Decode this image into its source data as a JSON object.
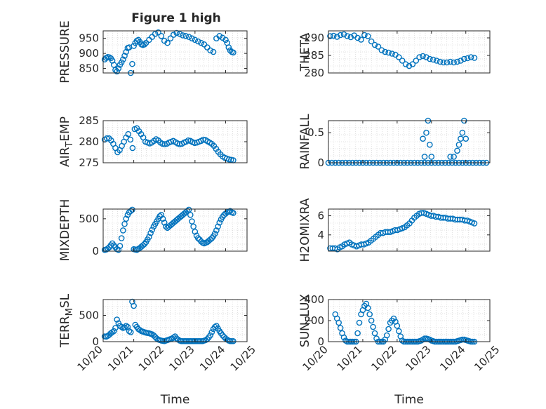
{
  "title": "Figure 1 high",
  "colors": {
    "marker": "#0072BD",
    "axis": "#262626",
    "grid": "#d9d9d9"
  },
  "chart_data": [
    {
      "type": "scatter",
      "ylabel": "PRESSURE",
      "ylim": [
        835,
        975
      ],
      "yticks": [
        850,
        900,
        950
      ],
      "xlim": [
        0,
        4.7
      ],
      "grid": true,
      "x": [
        0.05,
        0.1,
        0.15,
        0.2,
        0.25,
        0.3,
        0.35,
        0.4,
        0.45,
        0.5,
        0.55,
        0.6,
        0.65,
        0.7,
        0.75,
        0.8,
        0.85,
        0.9,
        0.95,
        1.0,
        1.05,
        1.1,
        1.15,
        1.2,
        1.25,
        1.3,
        1.35,
        1.4,
        1.5,
        1.6,
        1.7,
        1.8,
        1.9,
        2.0,
        2.1,
        2.2,
        2.3,
        2.4,
        2.5,
        2.6,
        2.7,
        2.8,
        2.9,
        3.0,
        3.1,
        3.2,
        3.3,
        3.4,
        3.5,
        3.6,
        3.7,
        3.8,
        3.9,
        4.0,
        4.05,
        4.1,
        4.15,
        4.2,
        4.25
      ],
      "values": [
        880,
        885,
        888,
        887,
        884,
        876,
        862,
        845,
        840,
        850,
        862,
        870,
        880,
        892,
        905,
        918,
        920,
        835,
        865,
        925,
        935,
        942,
        945,
        938,
        930,
        928,
        930,
        935,
        945,
        955,
        965,
        970,
        958,
        942,
        935,
        950,
        962,
        968,
        965,
        960,
        958,
        955,
        950,
        945,
        940,
        935,
        930,
        920,
        910,
        905,
        950,
        958,
        952,
        945,
        935,
        920,
        910,
        905,
        903
      ]
    },
    {
      "type": "scatter",
      "ylabel": "THETA",
      "ylim": [
        280,
        292
      ],
      "yticks": [
        280,
        285,
        290
      ],
      "xlim": [
        0,
        4.7
      ],
      "grid": true,
      "x": [
        0.05,
        0.15,
        0.25,
        0.35,
        0.45,
        0.55,
        0.65,
        0.75,
        0.85,
        0.95,
        1.05,
        1.15,
        1.25,
        1.35,
        1.45,
        1.55,
        1.65,
        1.75,
        1.85,
        1.95,
        2.05,
        2.15,
        2.25,
        2.35,
        2.45,
        2.55,
        2.65,
        2.75,
        2.85,
        2.95,
        3.05,
        3.15,
        3.25,
        3.35,
        3.45,
        3.55,
        3.65,
        3.75,
        3.85,
        3.95,
        4.05,
        4.15,
        4.25
      ],
      "values": [
        290.5,
        290.6,
        290.3,
        290.8,
        291.0,
        290.5,
        290.2,
        290.7,
        290.0,
        289.5,
        290.8,
        290.5,
        289.0,
        288.0,
        287.5,
        286.5,
        286.0,
        285.8,
        285.5,
        285.2,
        284.5,
        283.5,
        282.5,
        282.0,
        282.5,
        283.5,
        284.5,
        284.8,
        284.5,
        284.0,
        283.8,
        283.5,
        283.2,
        283.0,
        283.0,
        283.2,
        283.0,
        283.2,
        283.5,
        284.0,
        284.2,
        284.5,
        284.3
      ]
    },
    {
      "type": "scatter",
      "ylabel": "AIR_TEMP",
      "ylim": [
        275,
        285
      ],
      "yticks": [
        275,
        280,
        285
      ],
      "xlim": [
        0,
        4.7
      ],
      "grid": true,
      "x": [
        0.05,
        0.12,
        0.19,
        0.26,
        0.33,
        0.4,
        0.47,
        0.54,
        0.61,
        0.68,
        0.75,
        0.82,
        0.89,
        0.96,
        1.03,
        1.1,
        1.17,
        1.24,
        1.31,
        1.38,
        1.45,
        1.52,
        1.59,
        1.66,
        1.73,
        1.8,
        1.87,
        1.94,
        2.01,
        2.08,
        2.15,
        2.22,
        2.29,
        2.36,
        2.43,
        2.5,
        2.57,
        2.64,
        2.71,
        2.78,
        2.85,
        2.92,
        2.99,
        3.06,
        3.13,
        3.2,
        3.27,
        3.34,
        3.41,
        3.48,
        3.55,
        3.62,
        3.69,
        3.76,
        3.83,
        3.9,
        3.97,
        4.04,
        4.11,
        4.18,
        4.25
      ],
      "values": [
        280.5,
        280.8,
        280.8,
        280.3,
        279.5,
        278.5,
        277.5,
        278.0,
        279.0,
        280.0,
        281.0,
        281.8,
        280.5,
        278.5,
        283.0,
        283.2,
        282.5,
        281.8,
        281.0,
        280.0,
        279.8,
        279.6,
        279.8,
        280.2,
        280.6,
        280.3,
        279.8,
        279.5,
        279.4,
        279.5,
        279.8,
        280.0,
        280.2,
        279.9,
        279.6,
        279.4,
        279.5,
        279.8,
        280.0,
        280.3,
        280.2,
        279.9,
        279.7,
        279.8,
        280.0,
        280.2,
        280.5,
        280.4,
        280.1,
        279.8,
        279.5,
        279.0,
        278.3,
        277.6,
        277.0,
        276.5,
        276.2,
        276.0,
        275.8,
        275.7,
        275.6
      ]
    },
    {
      "type": "scatter",
      "ylabel": "RAINFALL",
      "ylim": [
        0,
        0.7
      ],
      "yticks": [
        0,
        0.5
      ],
      "xlim": [
        0,
        4.7
      ],
      "grid": true,
      "x": [
        0.0,
        0.1,
        0.2,
        0.3,
        0.4,
        0.5,
        0.6,
        0.7,
        0.8,
        0.9,
        1.0,
        1.1,
        1.2,
        1.3,
        1.4,
        1.5,
        1.6,
        1.7,
        1.8,
        1.9,
        2.0,
        2.1,
        2.2,
        2.3,
        2.4,
        2.5,
        2.6,
        2.7,
        2.8,
        2.9,
        3.0,
        3.1,
        3.2,
        3.3,
        3.4,
        3.5,
        3.6,
        3.7,
        3.8,
        3.9,
        4.0,
        4.1,
        4.2,
        4.3,
        4.4,
        4.5,
        4.6,
        2.75,
        2.8,
        2.85,
        2.9,
        2.95,
        3.0,
        3.55,
        3.65,
        3.75,
        3.8,
        3.85,
        3.9,
        3.95,
        4.0
      ],
      "values": [
        0,
        0,
        0,
        0,
        0,
        0,
        0,
        0,
        0,
        0,
        0,
        0,
        0,
        0,
        0,
        0,
        0,
        0,
        0,
        0,
        0,
        0,
        0,
        0,
        0,
        0,
        0,
        0,
        0,
        0,
        0,
        0,
        0,
        0,
        0,
        0,
        0,
        0,
        0,
        0,
        0,
        0,
        0,
        0,
        0,
        0,
        0,
        0.4,
        0.1,
        0.5,
        0.7,
        0.3,
        0.1,
        0.1,
        0.1,
        0.2,
        0.3,
        0.4,
        0.5,
        0.7,
        0.4
      ]
    },
    {
      "type": "scatter",
      "ylabel": "MIXDEPTH",
      "ylim": [
        0,
        650
      ],
      "yticks": [
        0,
        500
      ],
      "xlim": [
        0,
        4.7
      ],
      "grid": true,
      "x": [
        0.05,
        0.1,
        0.15,
        0.2,
        0.25,
        0.3,
        0.35,
        0.4,
        0.45,
        0.5,
        0.55,
        0.6,
        0.65,
        0.7,
        0.75,
        0.8,
        0.85,
        0.9,
        0.95,
        1.0,
        1.05,
        1.1,
        1.15,
        1.2,
        1.25,
        1.3,
        1.35,
        1.4,
        1.45,
        1.5,
        1.55,
        1.6,
        1.65,
        1.7,
        1.75,
        1.8,
        1.85,
        1.9,
        1.95,
        2.0,
        2.05,
        2.1,
        2.15,
        2.2,
        2.25,
        2.3,
        2.35,
        2.4,
        2.45,
        2.5,
        2.55,
        2.6,
        2.65,
        2.7,
        2.75,
        2.8,
        2.85,
        2.9,
        2.95,
        3.0,
        3.05,
        3.1,
        3.15,
        3.2,
        3.25,
        3.3,
        3.35,
        3.4,
        3.45,
        3.5,
        3.55,
        3.6,
        3.65,
        3.7,
        3.75,
        3.8,
        3.85,
        3.9,
        3.95,
        4.0,
        4.05,
        4.1,
        4.15,
        4.2,
        4.25
      ],
      "values": [
        20,
        25,
        40,
        60,
        90,
        120,
        90,
        60,
        30,
        20,
        80,
        200,
        320,
        420,
        500,
        560,
        600,
        620,
        640,
        30,
        25,
        20,
        35,
        50,
        70,
        90,
        110,
        140,
        180,
        220,
        280,
        330,
        380,
        420,
        460,
        500,
        540,
        560,
        500,
        440,
        380,
        360,
        380,
        400,
        420,
        440,
        460,
        480,
        500,
        520,
        540,
        560,
        580,
        600,
        620,
        640,
        560,
        460,
        380,
        300,
        240,
        200,
        180,
        150,
        130,
        120,
        130,
        140,
        160,
        180,
        200,
        230,
        270,
        320,
        380,
        440,
        490,
        530,
        560,
        580,
        600,
        610,
        620,
        600,
        590
      ]
    },
    {
      "type": "scatter",
      "ylabel": "H2OMIXRA",
      "ylim": [
        2.3,
        6.7
      ],
      "yticks": [
        4,
        6
      ],
      "xlim": [
        0,
        4.7
      ],
      "grid": true,
      "x": [
        0.05,
        0.12,
        0.19,
        0.26,
        0.33,
        0.4,
        0.47,
        0.54,
        0.61,
        0.68,
        0.75,
        0.82,
        0.89,
        0.96,
        1.03,
        1.1,
        1.17,
        1.24,
        1.31,
        1.38,
        1.45,
        1.52,
        1.59,
        1.66,
        1.73,
        1.8,
        1.87,
        1.94,
        2.01,
        2.08,
        2.15,
        2.22,
        2.29,
        2.36,
        2.43,
        2.5,
        2.57,
        2.64,
        2.71,
        2.78,
        2.85,
        2.92,
        2.99,
        3.06,
        3.13,
        3.2,
        3.27,
        3.34,
        3.41,
        3.48,
        3.55,
        3.62,
        3.69,
        3.76,
        3.83,
        3.9,
        3.97,
        4.04,
        4.11,
        4.18,
        4.25
      ],
      "values": [
        2.6,
        2.6,
        2.6,
        2.5,
        2.7,
        2.8,
        3.0,
        3.1,
        3.2,
        3.0,
        2.9,
        2.8,
        2.9,
        3.0,
        3.0,
        3.1,
        3.2,
        3.4,
        3.6,
        3.8,
        4.0,
        4.2,
        4.2,
        4.3,
        4.3,
        4.3,
        4.4,
        4.5,
        4.5,
        4.6,
        4.7,
        4.8,
        5.0,
        5.2,
        5.5,
        5.8,
        6.0,
        6.2,
        6.3,
        6.3,
        6.2,
        6.1,
        6.0,
        6.0,
        5.9,
        5.9,
        5.8,
        5.8,
        5.8,
        5.7,
        5.7,
        5.7,
        5.6,
        5.6,
        5.6,
        5.6,
        5.5,
        5.5,
        5.4,
        5.3,
        5.2
      ]
    },
    {
      "type": "scatter",
      "ylabel": "TERR_MSL",
      "xlabel": "Time",
      "ylim": [
        0,
        800
      ],
      "yticks": [
        0,
        500
      ],
      "xlim": [
        0,
        4.7
      ],
      "xticks": [
        "10/20",
        "10/21",
        "10/22",
        "10/23",
        "10/24",
        "10/25"
      ],
      "grid": true,
      "x": [
        0.05,
        0.1,
        0.15,
        0.2,
        0.25,
        0.3,
        0.35,
        0.4,
        0.45,
        0.5,
        0.55,
        0.6,
        0.65,
        0.7,
        0.75,
        0.8,
        0.85,
        0.9,
        0.95,
        1.0,
        1.05,
        1.1,
        1.15,
        1.2,
        1.25,
        1.3,
        1.35,
        1.4,
        1.45,
        1.5,
        1.55,
        1.6,
        1.65,
        1.7,
        1.75,
        1.8,
        1.85,
        1.9,
        1.95,
        2.0,
        2.05,
        2.1,
        2.15,
        2.2,
        2.25,
        2.3,
        2.35,
        2.4,
        2.45,
        2.5,
        2.55,
        2.6,
        2.65,
        2.7,
        2.75,
        2.8,
        2.85,
        2.9,
        2.95,
        3.0,
        3.05,
        3.1,
        3.15,
        3.2,
        3.25,
        3.3,
        3.35,
        3.4,
        3.45,
        3.5,
        3.55,
        3.6,
        3.65,
        3.7,
        3.75,
        3.8,
        3.85,
        3.9,
        3.95,
        4.0,
        4.05,
        4.1,
        4.15,
        4.2,
        4.25
      ],
      "values": [
        100,
        95,
        110,
        130,
        160,
        180,
        200,
        260,
        420,
        350,
        300,
        280,
        260,
        270,
        300,
        280,
        200,
        180,
        760,
        680,
        320,
        280,
        240,
        220,
        200,
        190,
        180,
        170,
        165,
        160,
        150,
        140,
        120,
        90,
        60,
        40,
        30,
        20,
        15,
        10,
        20,
        30,
        40,
        50,
        60,
        80,
        100,
        60,
        40,
        20,
        10,
        10,
        10,
        10,
        10,
        10,
        10,
        10,
        10,
        10,
        10,
        10,
        10,
        10,
        10,
        20,
        30,
        50,
        80,
        120,
        180,
        240,
        280,
        300,
        250,
        200,
        160,
        120,
        90,
        60,
        40,
        20,
        10,
        10,
        10
      ]
    },
    {
      "type": "scatter",
      "ylabel": "SUN_FLUX",
      "xlabel": "Time",
      "ylim": [
        0,
        400
      ],
      "yticks": [
        0,
        200,
        400
      ],
      "xlim": [
        0,
        4.7
      ],
      "xticks": [
        "10/20",
        "10/21",
        "10/22",
        "10/23",
        "10/24",
        "10/25"
      ],
      "grid": true,
      "x": [
        0.2,
        0.25,
        0.3,
        0.35,
        0.4,
        0.45,
        0.5,
        0.55,
        0.6,
        0.65,
        0.7,
        0.75,
        0.8,
        0.85,
        0.9,
        0.95,
        1.0,
        1.05,
        1.1,
        1.15,
        1.2,
        1.25,
        1.3,
        1.35,
        1.4,
        1.45,
        1.5,
        1.55,
        1.6,
        1.65,
        1.7,
        1.75,
        1.8,
        1.85,
        1.9,
        1.95,
        2.0,
        2.05,
        2.1,
        2.15,
        2.2,
        2.25,
        2.3,
        2.35,
        2.4,
        2.45,
        2.5,
        2.55,
        2.6,
        2.65,
        2.7,
        2.75,
        2.8,
        2.85,
        2.9,
        2.95,
        3.0,
        3.05,
        3.1,
        3.15,
        3.2,
        3.25,
        3.3,
        3.35,
        3.4,
        3.45,
        3.5,
        3.55,
        3.6,
        3.65,
        3.7,
        3.75,
        3.8,
        3.85,
        3.9,
        3.95,
        4.0,
        4.05,
        4.1,
        4.15,
        4.2,
        4.25
      ],
      "values": [
        260,
        220,
        180,
        130,
        80,
        40,
        10,
        0,
        0,
        0,
        0,
        0,
        0,
        80,
        180,
        260,
        300,
        340,
        360,
        320,
        260,
        200,
        140,
        80,
        30,
        0,
        0,
        0,
        0,
        20,
        60,
        120,
        180,
        200,
        220,
        190,
        150,
        100,
        50,
        10,
        0,
        0,
        0,
        0,
        0,
        0,
        0,
        0,
        0,
        5,
        10,
        20,
        30,
        30,
        25,
        20,
        10,
        5,
        0,
        0,
        0,
        0,
        0,
        0,
        0,
        0,
        0,
        0,
        0,
        0,
        0,
        5,
        10,
        15,
        20,
        20,
        15,
        10,
        5,
        0,
        0,
        0
      ]
    }
  ]
}
